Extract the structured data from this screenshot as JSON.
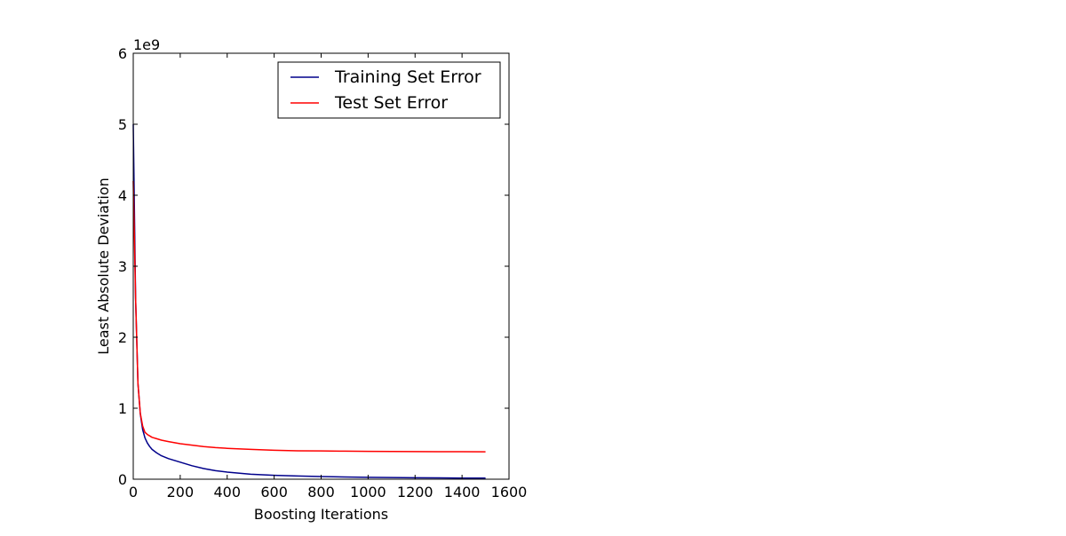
{
  "chart_data": {
    "type": "line",
    "title": "",
    "xlabel": "Boosting Iterations",
    "ylabel": "Least Absolute Deviation",
    "xlim": [
      0,
      1600
    ],
    "ylim": [
      0,
      6000000000
    ],
    "y_offset_label": "1e9",
    "x_ticks": [
      0,
      200,
      400,
      600,
      800,
      1000,
      1200,
      1400,
      1600
    ],
    "y_ticks": [
      0,
      1,
      2,
      3,
      4,
      5,
      6
    ],
    "y_tick_scale": 1000000000,
    "grid": false,
    "legend_position": "top-right",
    "series": [
      {
        "name": "Training Set Error",
        "color": "#00008b",
        "x": [
          0,
          10,
          20,
          30,
          40,
          50,
          60,
          70,
          80,
          100,
          120,
          150,
          200,
          250,
          300,
          350,
          400,
          500,
          600,
          700,
          800,
          900,
          1000,
          1100,
          1200,
          1300,
          1400,
          1500
        ],
        "y": [
          5000000000,
          2550000000,
          1350000000,
          920000000,
          700000000,
          580000000,
          510000000,
          460000000,
          420000000,
          370000000,
          330000000,
          290000000,
          240000000,
          190000000,
          150000000,
          120000000,
          100000000,
          70000000,
          55000000,
          45000000,
          38000000,
          32000000,
          27000000,
          23000000,
          20000000,
          18000000,
          16000000,
          15000000
        ]
      },
      {
        "name": "Test Set Error",
        "color": "#ff0000",
        "x": [
          0,
          10,
          20,
          30,
          40,
          50,
          60,
          70,
          80,
          100,
          120,
          150,
          200,
          250,
          300,
          350,
          400,
          500,
          600,
          700,
          800,
          900,
          1000,
          1100,
          1200,
          1300,
          1400,
          1500
        ],
        "y": [
          4200000000,
          2550000000,
          1350000000,
          930000000,
          750000000,
          660000000,
          630000000,
          610000000,
          590000000,
          570000000,
          550000000,
          530000000,
          500000000,
          480000000,
          460000000,
          445000000,
          435000000,
          420000000,
          408000000,
          400000000,
          398000000,
          395000000,
          392000000,
          390000000,
          389000000,
          388000000,
          387000000,
          386000000
        ]
      }
    ]
  }
}
